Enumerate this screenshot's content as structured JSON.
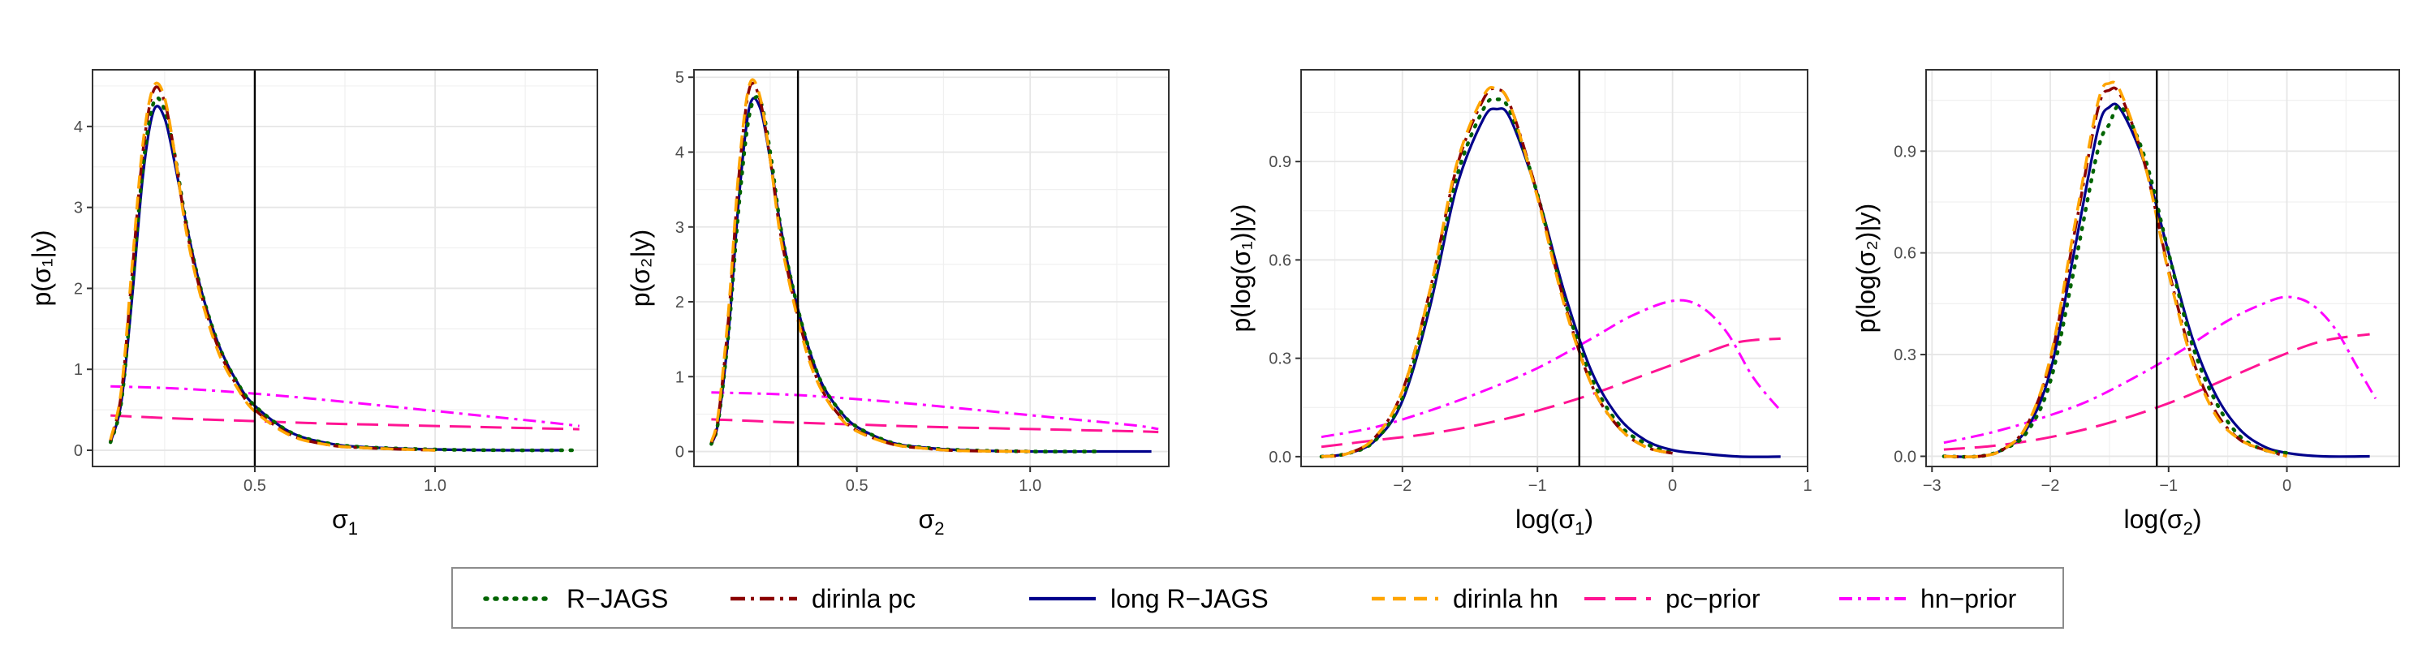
{
  "colors": {
    "rjags": "#006400",
    "dirinla_pc": "#8B0000",
    "long_rjags": "#00008B",
    "dirinla_hn": "#FFA500",
    "pc_prior": "#FF1493",
    "hn_prior": "#FF00FF",
    "vline": "#000000"
  },
  "legend": {
    "items": [
      {
        "key": "rjags",
        "label": "R−JAGS"
      },
      {
        "key": "dirinla_pc",
        "label": "dirinla pc"
      },
      {
        "key": "long_rjags",
        "label": "long R−JAGS"
      },
      {
        "key": "dirinla_hn",
        "label": "dirinla hn"
      },
      {
        "key": "pc_prior",
        "label": "pc−prior"
      },
      {
        "key": "hn_prior",
        "label": "hn−prior"
      }
    ]
  },
  "chart_data": [
    {
      "type": "line",
      "xlabel_base": "σ",
      "xlabel_sub": "1",
      "ylabel": "p(σ₁|y)",
      "xlim": [
        0.05,
        1.45
      ],
      "ylim": [
        -0.2,
        4.7
      ],
      "xticks": [
        0.5,
        1.0
      ],
      "xtick_labels": [
        "0.5",
        "1.0"
      ],
      "yticks": [
        0,
        1,
        2,
        3,
        4
      ],
      "ytick_labels": [
        "0",
        "1",
        "2",
        "3",
        "4"
      ],
      "vline": 0.5,
      "series": [
        {
          "key": "pc_prior",
          "x": [
            0.1,
            0.3,
            0.5,
            0.7,
            0.9,
            1.1,
            1.3,
            1.4
          ],
          "y": [
            0.43,
            0.39,
            0.36,
            0.33,
            0.31,
            0.29,
            0.27,
            0.26
          ]
        },
        {
          "key": "hn_prior",
          "x": [
            0.1,
            0.3,
            0.5,
            0.7,
            0.9,
            1.1,
            1.3,
            1.4
          ],
          "y": [
            0.79,
            0.76,
            0.7,
            0.62,
            0.53,
            0.44,
            0.35,
            0.3
          ]
        },
        {
          "key": "long_rjags",
          "x": [
            0.1,
            0.13,
            0.16,
            0.19,
            0.22,
            0.25,
            0.28,
            0.31,
            0.35,
            0.4,
            0.45,
            0.5,
            0.6,
            0.7,
            0.8,
            1.0,
            1.2,
            1.35
          ],
          "y": [
            0.1,
            0.6,
            1.9,
            3.4,
            4.2,
            4.1,
            3.5,
            2.8,
            2.0,
            1.3,
            0.85,
            0.55,
            0.22,
            0.09,
            0.04,
            0.01,
            0.0,
            0.0
          ]
        },
        {
          "key": "rjags",
          "x": [
            0.1,
            0.13,
            0.16,
            0.19,
            0.22,
            0.25,
            0.28,
            0.31,
            0.35,
            0.4,
            0.45,
            0.5,
            0.6,
            0.7,
            0.8,
            1.0,
            1.2,
            1.4
          ],
          "y": [
            0.1,
            0.6,
            2.0,
            3.5,
            4.3,
            4.2,
            3.6,
            2.8,
            2.0,
            1.3,
            0.85,
            0.55,
            0.22,
            0.09,
            0.04,
            0.01,
            0.0,
            0.0
          ]
        },
        {
          "key": "dirinla_pc",
          "x": [
            0.1,
            0.13,
            0.16,
            0.19,
            0.22,
            0.25,
            0.28,
            0.31,
            0.35,
            0.4,
            0.45,
            0.5,
            0.6,
            0.7,
            0.8,
            1.0
          ],
          "y": [
            0.12,
            0.7,
            2.2,
            3.7,
            4.45,
            4.3,
            3.6,
            2.75,
            1.95,
            1.25,
            0.8,
            0.5,
            0.19,
            0.07,
            0.03,
            0.0
          ]
        },
        {
          "key": "dirinla_hn",
          "x": [
            0.1,
            0.13,
            0.16,
            0.19,
            0.22,
            0.25,
            0.28,
            0.31,
            0.35,
            0.4,
            0.45,
            0.5,
            0.6,
            0.7,
            0.8,
            1.0
          ],
          "y": [
            0.13,
            0.75,
            2.3,
            3.8,
            4.5,
            4.35,
            3.6,
            2.7,
            1.9,
            1.2,
            0.78,
            0.48,
            0.18,
            0.07,
            0.03,
            0.0
          ]
        }
      ]
    },
    {
      "type": "line",
      "xlabel_base": "σ",
      "xlabel_sub": "2",
      "ylabel": "p(σ₂|y)",
      "xlim": [
        0.03,
        1.4
      ],
      "ylim": [
        -0.2,
        5.1
      ],
      "xticks": [
        0.5,
        1.0
      ],
      "xtick_labels": [
        "0.5",
        "1.0"
      ],
      "yticks": [
        0,
        1,
        2,
        3,
        4,
        5
      ],
      "ytick_labels": [
        "0",
        "1",
        "2",
        "3",
        "4",
        "5"
      ],
      "vline": 0.33,
      "series": [
        {
          "key": "pc_prior",
          "x": [
            0.08,
            0.3,
            0.5,
            0.7,
            0.9,
            1.1,
            1.3,
            1.37
          ],
          "y": [
            0.43,
            0.39,
            0.36,
            0.33,
            0.31,
            0.29,
            0.27,
            0.26
          ]
        },
        {
          "key": "hn_prior",
          "x": [
            0.08,
            0.3,
            0.5,
            0.7,
            0.9,
            1.1,
            1.3,
            1.37
          ],
          "y": [
            0.79,
            0.76,
            0.7,
            0.62,
            0.53,
            0.44,
            0.35,
            0.3
          ]
        },
        {
          "key": "long_rjags",
          "x": [
            0.08,
            0.1,
            0.13,
            0.16,
            0.19,
            0.22,
            0.25,
            0.28,
            0.32,
            0.36,
            0.4,
            0.45,
            0.5,
            0.6,
            0.7,
            0.8,
            1.0,
            1.2,
            1.35
          ],
          "y": [
            0.1,
            0.4,
            1.6,
            3.4,
            4.6,
            4.6,
            3.9,
            3.0,
            2.1,
            1.4,
            0.9,
            0.55,
            0.33,
            0.12,
            0.05,
            0.02,
            0.0,
            0.0,
            0.0
          ]
        },
        {
          "key": "rjags",
          "x": [
            0.08,
            0.1,
            0.13,
            0.16,
            0.19,
            0.22,
            0.25,
            0.28,
            0.32,
            0.36,
            0.4,
            0.45,
            0.5,
            0.6,
            0.7,
            0.8,
            1.0,
            1.2
          ],
          "y": [
            0.1,
            0.4,
            1.6,
            3.3,
            4.5,
            4.7,
            4.0,
            3.0,
            2.1,
            1.4,
            0.9,
            0.55,
            0.33,
            0.12,
            0.05,
            0.02,
            0.0,
            0.0
          ]
        },
        {
          "key": "dirinla_pc",
          "x": [
            0.08,
            0.1,
            0.13,
            0.16,
            0.19,
            0.22,
            0.25,
            0.28,
            0.32,
            0.36,
            0.4,
            0.45,
            0.5,
            0.6,
            0.7,
            0.8,
            1.0
          ],
          "y": [
            0.12,
            0.45,
            1.8,
            3.7,
            4.85,
            4.7,
            3.9,
            2.9,
            2.0,
            1.3,
            0.82,
            0.48,
            0.28,
            0.1,
            0.04,
            0.01,
            0.0
          ]
        },
        {
          "key": "dirinla_hn",
          "x": [
            0.08,
            0.1,
            0.13,
            0.16,
            0.19,
            0.22,
            0.25,
            0.28,
            0.32,
            0.36,
            0.4,
            0.45,
            0.5,
            0.6,
            0.7,
            0.8,
            1.0
          ],
          "y": [
            0.13,
            0.5,
            1.9,
            3.8,
            4.9,
            4.75,
            3.9,
            2.85,
            1.95,
            1.25,
            0.8,
            0.46,
            0.27,
            0.1,
            0.04,
            0.01,
            0.0
          ]
        }
      ]
    },
    {
      "type": "line",
      "xlabel_base": "log(σ",
      "xlabel_sub": "1",
      "xlabel_tail": ")",
      "ylabel": "p(log(σ₁)|y)",
      "xlim": [
        -2.75,
        1.0
      ],
      "ylim": [
        -0.03,
        1.18
      ],
      "xticks": [
        -2,
        -1,
        0,
        1
      ],
      "xtick_labels": [
        "−2",
        "−1",
        "0",
        "1"
      ],
      "yticks": [
        0.0,
        0.3,
        0.6,
        0.9
      ],
      "ytick_labels": [
        "0.0",
        "0.3",
        "0.6",
        "0.9"
      ],
      "vline": -0.69,
      "series": [
        {
          "key": "pc_prior",
          "x": [
            -2.6,
            -2.2,
            -1.8,
            -1.4,
            -1.0,
            -0.6,
            -0.2,
            0.2,
            0.5,
            0.8
          ],
          "y": [
            0.03,
            0.05,
            0.07,
            0.1,
            0.14,
            0.19,
            0.25,
            0.31,
            0.35,
            0.36
          ]
        },
        {
          "key": "hn_prior",
          "x": [
            -2.6,
            -2.2,
            -1.8,
            -1.4,
            -1.0,
            -0.6,
            -0.3,
            0.0,
            0.2,
            0.4,
            0.6,
            0.8
          ],
          "y": [
            0.06,
            0.09,
            0.14,
            0.2,
            0.27,
            0.36,
            0.43,
            0.475,
            0.46,
            0.38,
            0.24,
            0.14
          ]
        },
        {
          "key": "long_rjags",
          "x": [
            -2.6,
            -2.4,
            -2.2,
            -2.0,
            -1.8,
            -1.6,
            -1.4,
            -1.3,
            -1.2,
            -1.0,
            -0.8,
            -0.6,
            -0.4,
            -0.2,
            0.0,
            0.2,
            0.5,
            0.8
          ],
          "y": [
            0.0,
            0.01,
            0.05,
            0.17,
            0.45,
            0.82,
            1.03,
            1.06,
            1.03,
            0.8,
            0.5,
            0.26,
            0.12,
            0.05,
            0.02,
            0.01,
            0.0,
            0.0
          ]
        },
        {
          "key": "rjags",
          "x": [
            -2.6,
            -2.4,
            -2.2,
            -2.0,
            -1.8,
            -1.6,
            -1.4,
            -1.3,
            -1.2,
            -1.0,
            -0.8,
            -0.6,
            -0.4,
            -0.2,
            0.0
          ],
          "y": [
            0.0,
            0.01,
            0.05,
            0.18,
            0.47,
            0.85,
            1.06,
            1.09,
            1.05,
            0.8,
            0.48,
            0.24,
            0.1,
            0.04,
            0.01
          ]
        },
        {
          "key": "dirinla_pc",
          "x": [
            -2.6,
            -2.4,
            -2.2,
            -2.0,
            -1.8,
            -1.6,
            -1.4,
            -1.3,
            -1.2,
            -1.0,
            -0.8,
            -0.6,
            -0.4,
            -0.2,
            0.0
          ],
          "y": [
            0.0,
            0.01,
            0.06,
            0.2,
            0.5,
            0.88,
            1.09,
            1.12,
            1.07,
            0.8,
            0.47,
            0.22,
            0.09,
            0.03,
            0.01
          ]
        },
        {
          "key": "dirinla_hn",
          "x": [
            -2.6,
            -2.4,
            -2.2,
            -2.0,
            -1.8,
            -1.6,
            -1.4,
            -1.3,
            -1.2,
            -1.0,
            -0.8,
            -0.6,
            -0.4,
            -0.2,
            0.0
          ],
          "y": [
            0.0,
            0.01,
            0.06,
            0.2,
            0.5,
            0.89,
            1.1,
            1.12,
            1.07,
            0.79,
            0.46,
            0.22,
            0.09,
            0.03,
            0.01
          ]
        }
      ]
    },
    {
      "type": "line",
      "xlabel_base": "log(σ",
      "xlabel_sub": "2",
      "xlabel_tail": ")",
      "ylabel": "p(log(σ₂)|y)",
      "xlim": [
        -3.05,
        0.95
      ],
      "ylim": [
        -0.03,
        1.14
      ],
      "xticks": [
        -3,
        -2,
        -1,
        0
      ],
      "xtick_labels": [
        "−3",
        "−2",
        "−1",
        "0"
      ],
      "yticks": [
        0.0,
        0.3,
        0.6,
        0.9
      ],
      "ytick_labels": [
        "0.0",
        "0.3",
        "0.6",
        "0.9"
      ],
      "vline": -1.1,
      "series": [
        {
          "key": "pc_prior",
          "x": [
            -2.9,
            -2.5,
            -2.1,
            -1.7,
            -1.3,
            -0.9,
            -0.5,
            -0.1,
            0.3,
            0.7
          ],
          "y": [
            0.02,
            0.03,
            0.05,
            0.08,
            0.12,
            0.17,
            0.23,
            0.29,
            0.34,
            0.36
          ]
        },
        {
          "key": "hn_prior",
          "x": [
            -2.9,
            -2.5,
            -2.1,
            -1.7,
            -1.3,
            -0.9,
            -0.5,
            -0.2,
            0.0,
            0.2,
            0.4,
            0.6,
            0.75
          ],
          "y": [
            0.04,
            0.07,
            0.11,
            0.16,
            0.23,
            0.31,
            0.4,
            0.45,
            0.47,
            0.45,
            0.38,
            0.26,
            0.17
          ]
        },
        {
          "key": "long_rjags",
          "x": [
            -2.9,
            -2.6,
            -2.4,
            -2.2,
            -2.0,
            -1.8,
            -1.6,
            -1.5,
            -1.4,
            -1.2,
            -1.0,
            -0.8,
            -0.6,
            -0.4,
            -0.2,
            0.0,
            0.3,
            0.7
          ],
          "y": [
            0.0,
            0.0,
            0.02,
            0.08,
            0.25,
            0.6,
            0.96,
            1.03,
            1.02,
            0.86,
            0.6,
            0.35,
            0.18,
            0.08,
            0.03,
            0.01,
            0.0,
            0.0
          ]
        },
        {
          "key": "rjags",
          "x": [
            -2.9,
            -2.6,
            -2.4,
            -2.2,
            -2.0,
            -1.8,
            -1.6,
            -1.5,
            -1.4,
            -1.2,
            -1.0,
            -0.8,
            -0.6,
            -0.4,
            -0.2,
            0.0
          ],
          "y": [
            0.0,
            0.0,
            0.02,
            0.07,
            0.22,
            0.55,
            0.9,
            0.98,
            1.03,
            0.88,
            0.6,
            0.33,
            0.16,
            0.06,
            0.02,
            0.01
          ]
        },
        {
          "key": "dirinla_pc",
          "x": [
            -2.9,
            -2.6,
            -2.4,
            -2.2,
            -2.0,
            -1.8,
            -1.6,
            -1.5,
            -1.4,
            -1.2,
            -1.0,
            -0.8,
            -0.6,
            -0.4,
            -0.2,
            0.0
          ],
          "y": [
            0.0,
            0.0,
            0.02,
            0.09,
            0.28,
            0.65,
            1.02,
            1.08,
            1.06,
            0.86,
            0.55,
            0.29,
            0.13,
            0.05,
            0.02,
            0.0
          ]
        },
        {
          "key": "dirinla_hn",
          "x": [
            -2.9,
            -2.6,
            -2.4,
            -2.2,
            -2.0,
            -1.8,
            -1.6,
            -1.5,
            -1.4,
            -1.2,
            -1.0,
            -0.8,
            -0.6,
            -0.4,
            -0.2,
            0.0
          ],
          "y": [
            0.0,
            0.0,
            0.02,
            0.09,
            0.29,
            0.67,
            1.04,
            1.1,
            1.07,
            0.86,
            0.54,
            0.28,
            0.12,
            0.05,
            0.02,
            0.0
          ]
        }
      ]
    }
  ]
}
